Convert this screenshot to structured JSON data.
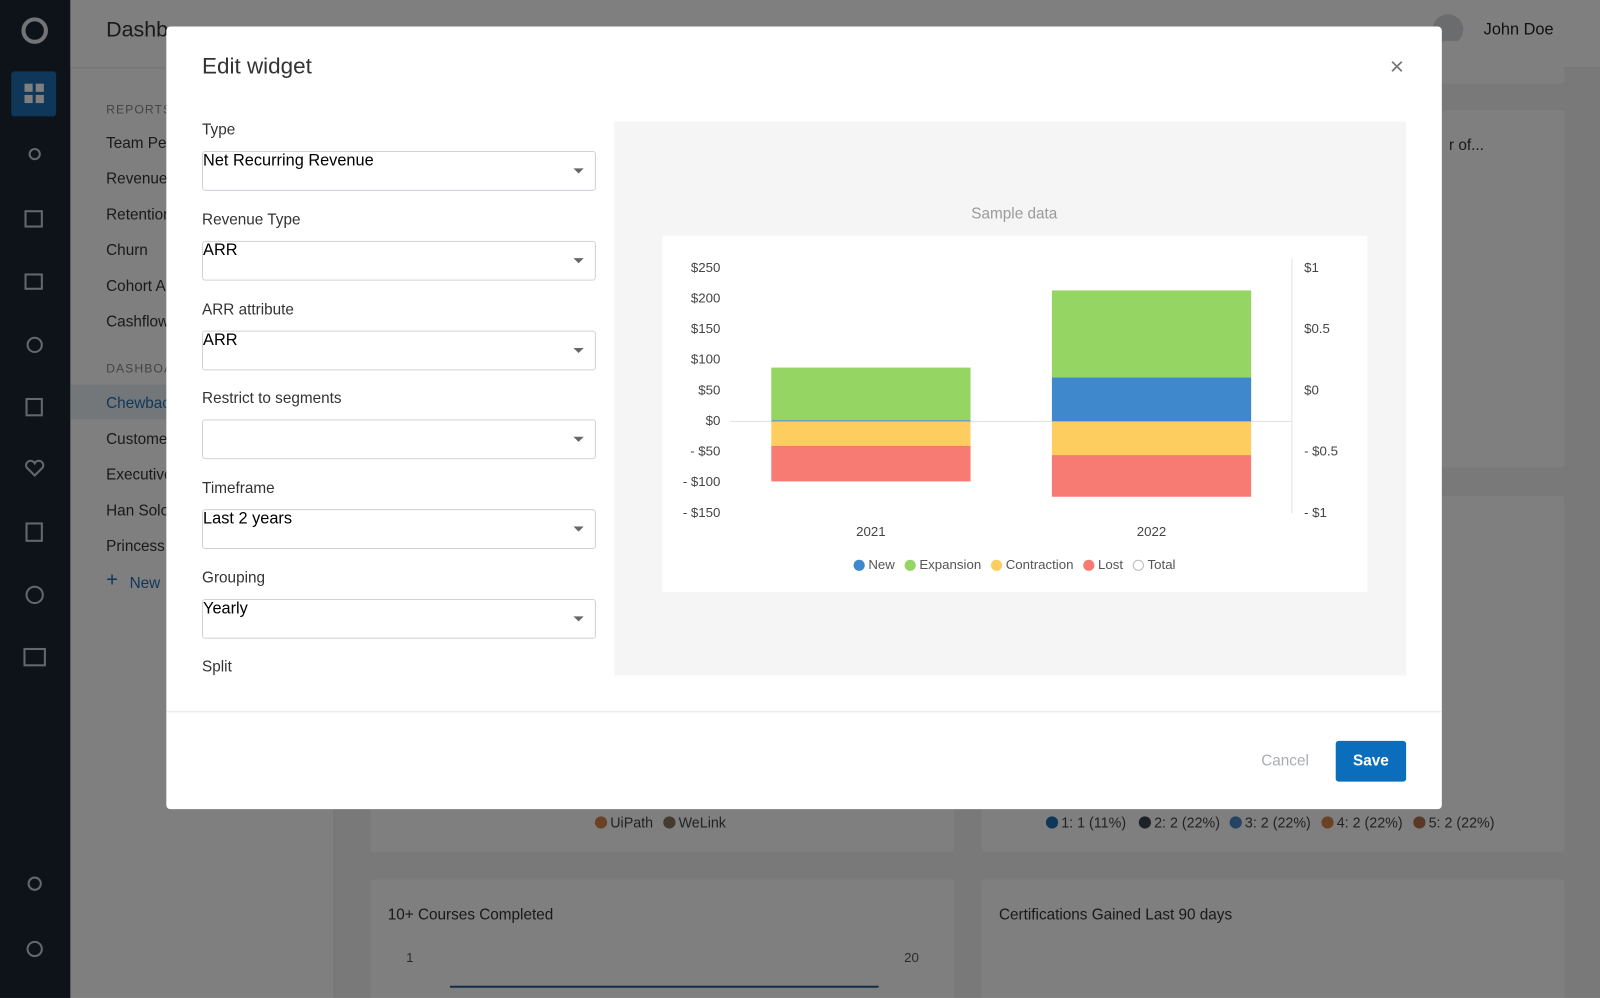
{
  "header": {
    "title": "Dashb",
    "user": "John Doe"
  },
  "sidebar": {
    "reports_heading": "REPORTS",
    "reports": [
      "Team Pe",
      "Revenue",
      "Retention",
      "Churn",
      "Cohort A",
      "Cashflow"
    ],
    "dashboards_heading": "DASHBOA",
    "dashboards": [
      "Chewbac",
      "Custome",
      "Executive",
      "Han Solo",
      "Princess"
    ],
    "new_dashboard": "New"
  },
  "background_cards": {
    "top_right_title": "r of...",
    "left_legend": [
      "UiPath",
      "WeLink"
    ],
    "right_legend": [
      "1: 1 (11%)",
      "2: 2 (22%)",
      "3: 2 (22%)",
      "4: 2 (22%)",
      "5: 2 (22%)"
    ],
    "courses_title": "10+ Courses Completed",
    "courses_left_tick": "1",
    "courses_right_tick": "20",
    "certifications_title": "Certifications Gained Last 90 days"
  },
  "modal": {
    "title": "Edit widget",
    "fields": [
      {
        "label": "Type",
        "value": "Net Recurring Revenue"
      },
      {
        "label": "Revenue Type",
        "value": "ARR"
      },
      {
        "label": "ARR attribute",
        "value": "ARR"
      },
      {
        "label": "Restrict to segments"
      },
      {
        "label": "Timeframe",
        "value": "Last 2 years"
      },
      {
        "label": "Grouping",
        "value": "Yearly"
      }
    ],
    "split_label": "Split",
    "sample_label": "Sample data",
    "cancel": "Cancel",
    "save": "Save"
  },
  "chart_data": {
    "type": "stacked_bar",
    "categories": [
      "2021",
      "2022"
    ],
    "series": [
      {
        "name": "New",
        "color": "#3f88cc",
        "values": [
          2,
          72
        ]
      },
      {
        "name": "Expansion",
        "color": "#95d564",
        "values": [
          86,
          142
        ]
      },
      {
        "name": "Contraction",
        "color": "#fdce5f",
        "values": [
          -40,
          -55
        ]
      },
      {
        "name": "Lost",
        "color": "#f77b72",
        "values": [
          -58,
          -68
        ]
      },
      {
        "name": "Total",
        "color": "#ffffff",
        "axis": "y2",
        "values": [
          null,
          null
        ]
      }
    ],
    "ylim": [
      -150,
      250
    ],
    "yticks": [
      {
        "value": 250,
        "label": "$250"
      },
      {
        "value": 200,
        "label": "$200"
      },
      {
        "value": 150,
        "label": "$150"
      },
      {
        "value": 100,
        "label": "$100"
      },
      {
        "value": 50,
        "label": "$50"
      },
      {
        "value": 0,
        "label": "$0"
      },
      {
        "value": -50,
        "label": "- $50"
      },
      {
        "value": -100,
        "label": "- $100"
      },
      {
        "value": -150,
        "label": "- $150"
      }
    ],
    "y2lim": [
      -1,
      1
    ],
    "y2ticks": [
      {
        "value": 1,
        "label": "$1"
      },
      {
        "value": 0.5,
        "label": "$0.5"
      },
      {
        "value": 0,
        "label": "$0"
      },
      {
        "value": -0.5,
        "label": "- $0.5"
      },
      {
        "value": -1,
        "label": "- $1"
      }
    ],
    "grid": false,
    "legend": "bottom"
  }
}
